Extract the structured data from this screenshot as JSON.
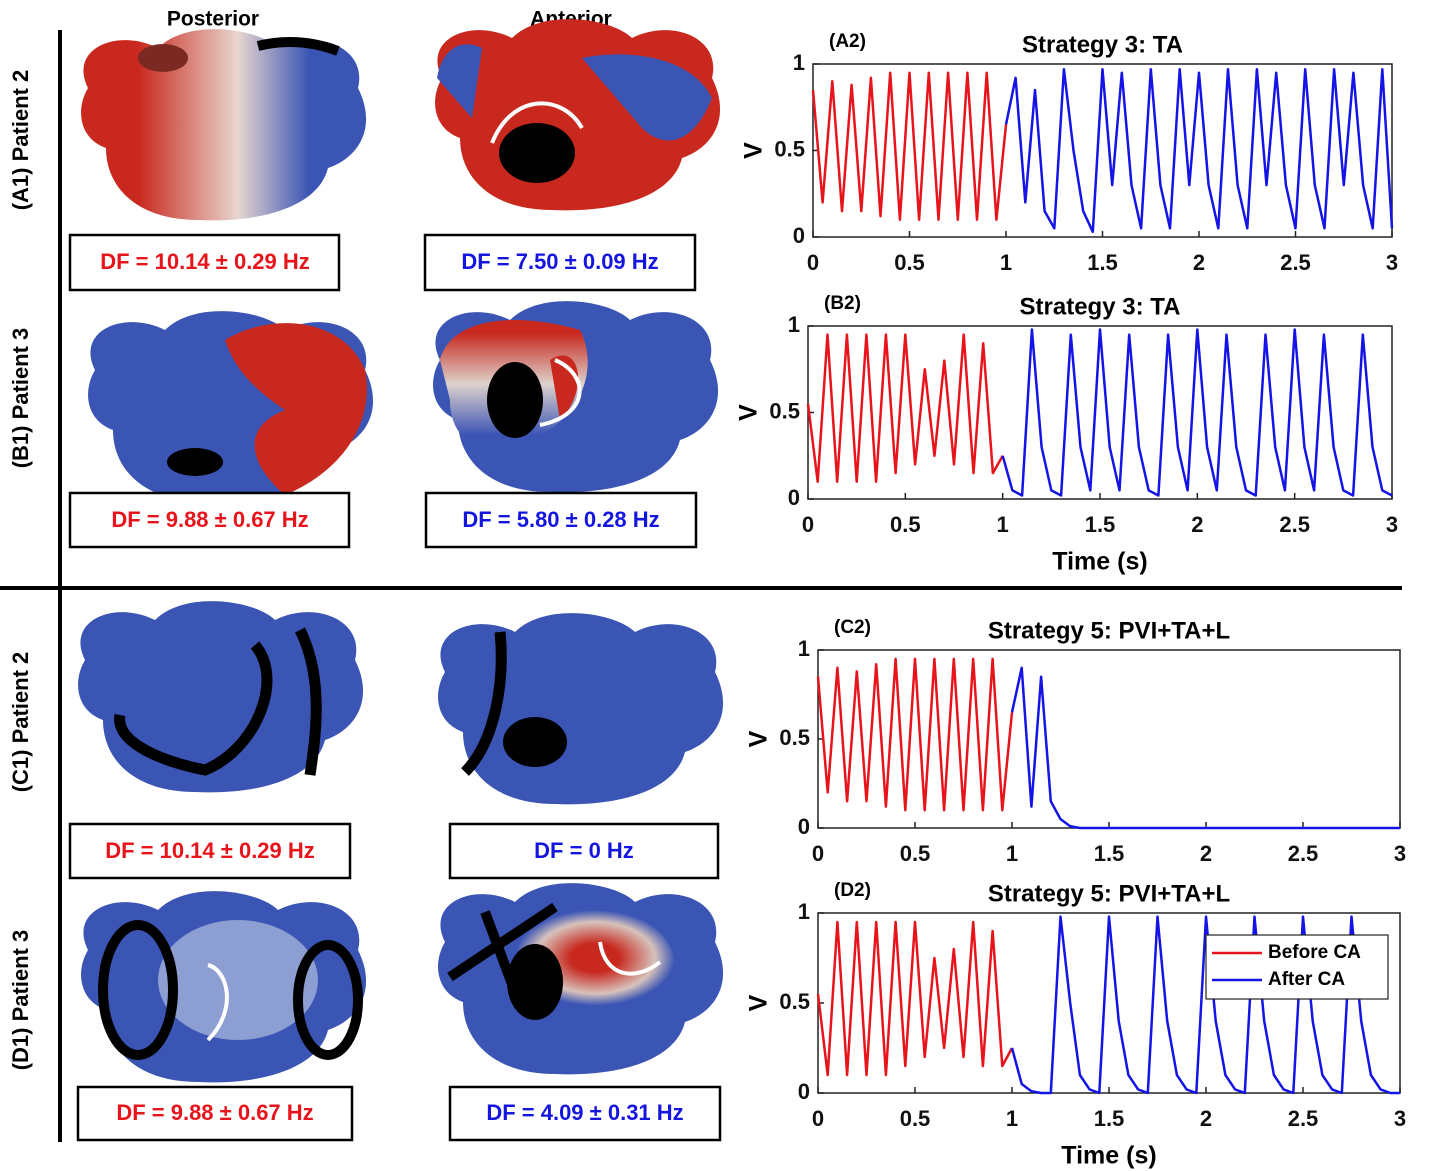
{
  "figure": {
    "columns": [
      "Posterior",
      "Anterior"
    ],
    "rows": [
      {
        "label": "(A1) Patient 2",
        "df": [
          "DF = 10.14 ± 0.29 Hz",
          "DF = 7.50 ± 0.09 Hz"
        ]
      },
      {
        "label": "(B1) Patient 3",
        "df": [
          "DF = 9.88 ± 0.67 Hz",
          "DF = 5.80 ± 0.28 Hz"
        ]
      },
      {
        "label": "(C1) Patient 2",
        "df": [
          "DF = 10.14 ± 0.29 Hz",
          "DF = 0 Hz"
        ]
      },
      {
        "label": "(D1) Patient 3",
        "df": [
          "DF = 9.88 ± 0.67 Hz",
          "DF = 4.09 ± 0.31 Hz"
        ]
      }
    ]
  },
  "chart_data": [
    {
      "type": "line",
      "label": "(A2)",
      "title": "Strategy 3: TA",
      "ylabel": "V",
      "xlim": [
        0,
        3
      ],
      "ylim": [
        0,
        1
      ],
      "xticks": [
        0,
        0.5,
        1,
        1.5,
        2,
        2.5,
        3
      ],
      "yticks": [
        0,
        0.5,
        1
      ],
      "x": [
        0,
        0.05,
        0.1,
        0.15,
        0.2,
        0.25,
        0.3,
        0.35,
        0.4,
        0.45,
        0.5,
        0.55,
        0.6,
        0.65,
        0.7,
        0.75,
        0.8,
        0.85,
        0.9,
        0.95,
        1,
        1.05,
        1.1,
        1.15,
        1.2,
        1.25,
        1.3,
        1.35,
        1.4,
        1.45,
        1.5,
        1.55,
        1.6,
        1.65,
        1.7,
        1.75,
        1.8,
        1.85,
        1.9,
        1.95,
        2,
        2.05,
        2.1,
        2.15,
        2.2,
        2.25,
        2.3,
        2.35,
        2.4,
        2.45,
        2.5,
        2.55,
        2.6,
        2.65,
        2.7,
        2.75,
        2.8,
        2.85,
        2.9,
        2.95,
        3
      ],
      "series": [
        {
          "color": "#e8141b",
          "values": [
            0.85,
            0.2,
            0.9,
            0.15,
            0.88,
            0.15,
            0.92,
            0.12,
            0.95,
            0.1,
            0.95,
            0.1,
            0.95,
            0.1,
            0.95,
            0.1,
            0.95,
            0.1,
            0.95,
            0.1,
            0.65,
            null,
            null,
            null,
            null,
            null,
            null,
            null,
            null,
            null,
            null,
            null,
            null,
            null,
            null,
            null,
            null,
            null,
            null,
            null,
            null,
            null,
            null,
            null,
            null,
            null,
            null,
            null,
            null,
            null,
            null,
            null,
            null,
            null,
            null,
            null,
            null,
            null,
            null,
            null,
            null
          ]
        },
        {
          "color": "#1414e6",
          "values": [
            null,
            null,
            null,
            null,
            null,
            null,
            null,
            null,
            null,
            null,
            null,
            null,
            null,
            null,
            null,
            null,
            null,
            null,
            null,
            null,
            0.65,
            0.92,
            0.2,
            0.85,
            0.15,
            0.05,
            0.97,
            0.5,
            0.15,
            0.03,
            0.97,
            0.3,
            0.95,
            0.3,
            0.05,
            0.97,
            0.3,
            0.05,
            0.97,
            0.3,
            0.95,
            0.3,
            0.05,
            0.97,
            0.3,
            0.05,
            0.97,
            0.3,
            0.95,
            0.3,
            0.05,
            0.97,
            0.3,
            0.05,
            0.97,
            0.3,
            0.95,
            0.3,
            0.05,
            0.97,
            0.05
          ]
        }
      ]
    },
    {
      "type": "line",
      "label": "(B2)",
      "title": "Strategy 3: TA",
      "ylabel": "V",
      "xlabel": "Time (s)",
      "xlim": [
        0,
        3
      ],
      "ylim": [
        0,
        1
      ],
      "xticks": [
        0,
        0.5,
        1,
        1.5,
        2,
        2.5,
        3
      ],
      "yticks": [
        0,
        0.5,
        1
      ],
      "x": [
        0,
        0.05,
        0.1,
        0.15,
        0.2,
        0.25,
        0.3,
        0.35,
        0.4,
        0.45,
        0.5,
        0.55,
        0.6,
        0.65,
        0.7,
        0.75,
        0.8,
        0.85,
        0.9,
        0.95,
        1,
        1.05,
        1.1,
        1.15,
        1.2,
        1.25,
        1.3,
        1.35,
        1.4,
        1.45,
        1.5,
        1.55,
        1.6,
        1.65,
        1.7,
        1.75,
        1.8,
        1.85,
        1.9,
        1.95,
        2,
        2.05,
        2.1,
        2.15,
        2.2,
        2.25,
        2.3,
        2.35,
        2.4,
        2.45,
        2.5,
        2.55,
        2.6,
        2.65,
        2.7,
        2.75,
        2.8,
        2.85,
        2.9,
        2.95,
        3
      ],
      "series": [
        {
          "color": "#e8141b",
          "values": [
            0.55,
            0.1,
            0.95,
            0.1,
            0.95,
            0.1,
            0.95,
            0.1,
            0.95,
            0.15,
            0.95,
            0.2,
            0.75,
            0.25,
            0.8,
            0.2,
            0.95,
            0.15,
            0.9,
            0.15,
            0.25,
            null,
            null,
            null,
            null,
            null,
            null,
            null,
            null,
            null,
            null,
            null,
            null,
            null,
            null,
            null,
            null,
            null,
            null,
            null,
            null,
            null,
            null,
            null,
            null,
            null,
            null,
            null,
            null,
            null,
            null,
            null,
            null,
            null,
            null,
            null,
            null,
            null,
            null,
            null,
            null
          ]
        },
        {
          "color": "#1414e6",
          "values": [
            null,
            null,
            null,
            null,
            null,
            null,
            null,
            null,
            null,
            null,
            null,
            null,
            null,
            null,
            null,
            null,
            null,
            null,
            null,
            null,
            0.25,
            0.05,
            0.02,
            0.98,
            0.3,
            0.05,
            0.02,
            0.95,
            0.3,
            0.05,
            0.98,
            0.3,
            0.05,
            0.95,
            0.3,
            0.05,
            0.02,
            0.95,
            0.3,
            0.05,
            0.98,
            0.3,
            0.05,
            0.95,
            0.3,
            0.05,
            0.02,
            0.95,
            0.3,
            0.05,
            0.98,
            0.3,
            0.05,
            0.95,
            0.3,
            0.05,
            0.02,
            0.95,
            0.3,
            0.05,
            0.02
          ]
        }
      ]
    },
    {
      "type": "line",
      "label": "(C2)",
      "title": "Strategy 5: PVI+TA+L",
      "ylabel": "V",
      "xlim": [
        0,
        3
      ],
      "ylim": [
        0,
        1
      ],
      "xticks": [
        0,
        0.5,
        1,
        1.5,
        2,
        2.5,
        3
      ],
      "yticks": [
        0,
        0.5,
        1
      ],
      "x": [
        0,
        0.05,
        0.1,
        0.15,
        0.2,
        0.25,
        0.3,
        0.35,
        0.4,
        0.45,
        0.5,
        0.55,
        0.6,
        0.65,
        0.7,
        0.75,
        0.8,
        0.85,
        0.9,
        0.95,
        1,
        1.05,
        1.1,
        1.15,
        1.2,
        1.25,
        1.3,
        1.35,
        1.4,
        1.45,
        1.5,
        1.55,
        1.6,
        1.65,
        1.7,
        1.75,
        1.8,
        1.85,
        1.9,
        1.95,
        2,
        2.05,
        2.1,
        2.15,
        2.2,
        2.25,
        2.3,
        2.35,
        2.4,
        2.45,
        2.5,
        2.55,
        2.6,
        2.65,
        2.7,
        2.75,
        2.8,
        2.85,
        2.9,
        2.95,
        3
      ],
      "series": [
        {
          "color": "#e8141b",
          "values": [
            0.85,
            0.2,
            0.9,
            0.15,
            0.88,
            0.15,
            0.92,
            0.12,
            0.95,
            0.1,
            0.95,
            0.1,
            0.95,
            0.1,
            0.95,
            0.1,
            0.95,
            0.1,
            0.95,
            0.1,
            0.65,
            null,
            null,
            null,
            null,
            null,
            null,
            null,
            null,
            null,
            null,
            null,
            null,
            null,
            null,
            null,
            null,
            null,
            null,
            null,
            null,
            null,
            null,
            null,
            null,
            null,
            null,
            null,
            null,
            null,
            null,
            null,
            null,
            null,
            null,
            null,
            null,
            null,
            null,
            null,
            null
          ]
        },
        {
          "color": "#1414e6",
          "values": [
            null,
            null,
            null,
            null,
            null,
            null,
            null,
            null,
            null,
            null,
            null,
            null,
            null,
            null,
            null,
            null,
            null,
            null,
            null,
            null,
            0.65,
            0.9,
            0.12,
            0.85,
            0.15,
            0.05,
            0.01,
            0,
            0,
            0,
            0,
            0,
            0,
            0,
            0,
            0,
            0,
            0,
            0,
            0,
            0,
            0,
            0,
            0,
            0,
            0,
            0,
            0,
            0,
            0,
            0,
            0,
            0,
            0,
            0,
            0,
            0,
            0,
            0,
            0,
            0
          ]
        }
      ]
    },
    {
      "type": "line",
      "label": "(D2)",
      "title": "Strategy 5: PVI+TA+L",
      "ylabel": "V",
      "xlabel": "Time (s)",
      "legend": "upper right",
      "xlim": [
        0,
        3
      ],
      "ylim": [
        0,
        1
      ],
      "xticks": [
        0,
        0.5,
        1,
        1.5,
        2,
        2.5,
        3
      ],
      "yticks": [
        0,
        0.5,
        1
      ],
      "x": [
        0,
        0.05,
        0.1,
        0.15,
        0.2,
        0.25,
        0.3,
        0.35,
        0.4,
        0.45,
        0.5,
        0.55,
        0.6,
        0.65,
        0.7,
        0.75,
        0.8,
        0.85,
        0.9,
        0.95,
        1,
        1.05,
        1.1,
        1.15,
        1.2,
        1.25,
        1.3,
        1.35,
        1.4,
        1.45,
        1.5,
        1.55,
        1.6,
        1.65,
        1.7,
        1.75,
        1.8,
        1.85,
        1.9,
        1.95,
        2,
        2.05,
        2.1,
        2.15,
        2.2,
        2.25,
        2.3,
        2.35,
        2.4,
        2.45,
        2.5,
        2.55,
        2.6,
        2.65,
        2.7,
        2.75,
        2.8,
        2.85,
        2.9,
        2.95,
        3
      ],
      "series": [
        {
          "name": "Before CA",
          "color": "#e8141b",
          "values": [
            0.55,
            0.1,
            0.95,
            0.1,
            0.95,
            0.1,
            0.95,
            0.1,
            0.95,
            0.15,
            0.95,
            0.2,
            0.75,
            0.25,
            0.8,
            0.2,
            0.95,
            0.15,
            0.9,
            0.15,
            0.25,
            null,
            null,
            null,
            null,
            null,
            null,
            null,
            null,
            null,
            null,
            null,
            null,
            null,
            null,
            null,
            null,
            null,
            null,
            null,
            null,
            null,
            null,
            null,
            null,
            null,
            null,
            null,
            null,
            null,
            null,
            null,
            null,
            null,
            null,
            null,
            null,
            null,
            null,
            null,
            null
          ]
        },
        {
          "name": "After CA",
          "color": "#1414e6",
          "values": [
            null,
            null,
            null,
            null,
            null,
            null,
            null,
            null,
            null,
            null,
            null,
            null,
            null,
            null,
            null,
            null,
            null,
            null,
            null,
            null,
            0.25,
            0.05,
            0.01,
            0,
            0,
            0.98,
            0.5,
            0.1,
            0.02,
            0,
            0.98,
            0.4,
            0.1,
            0.02,
            0,
            0.98,
            0.4,
            0.1,
            0.02,
            0,
            0.98,
            0.4,
            0.1,
            0.02,
            0,
            0.98,
            0.4,
            0.1,
            0.02,
            0,
            0.98,
            0.4,
            0.1,
            0.02,
            0,
            0.98,
            0.4,
            0.1,
            0.02,
            0,
            0
          ]
        }
      ]
    }
  ]
}
